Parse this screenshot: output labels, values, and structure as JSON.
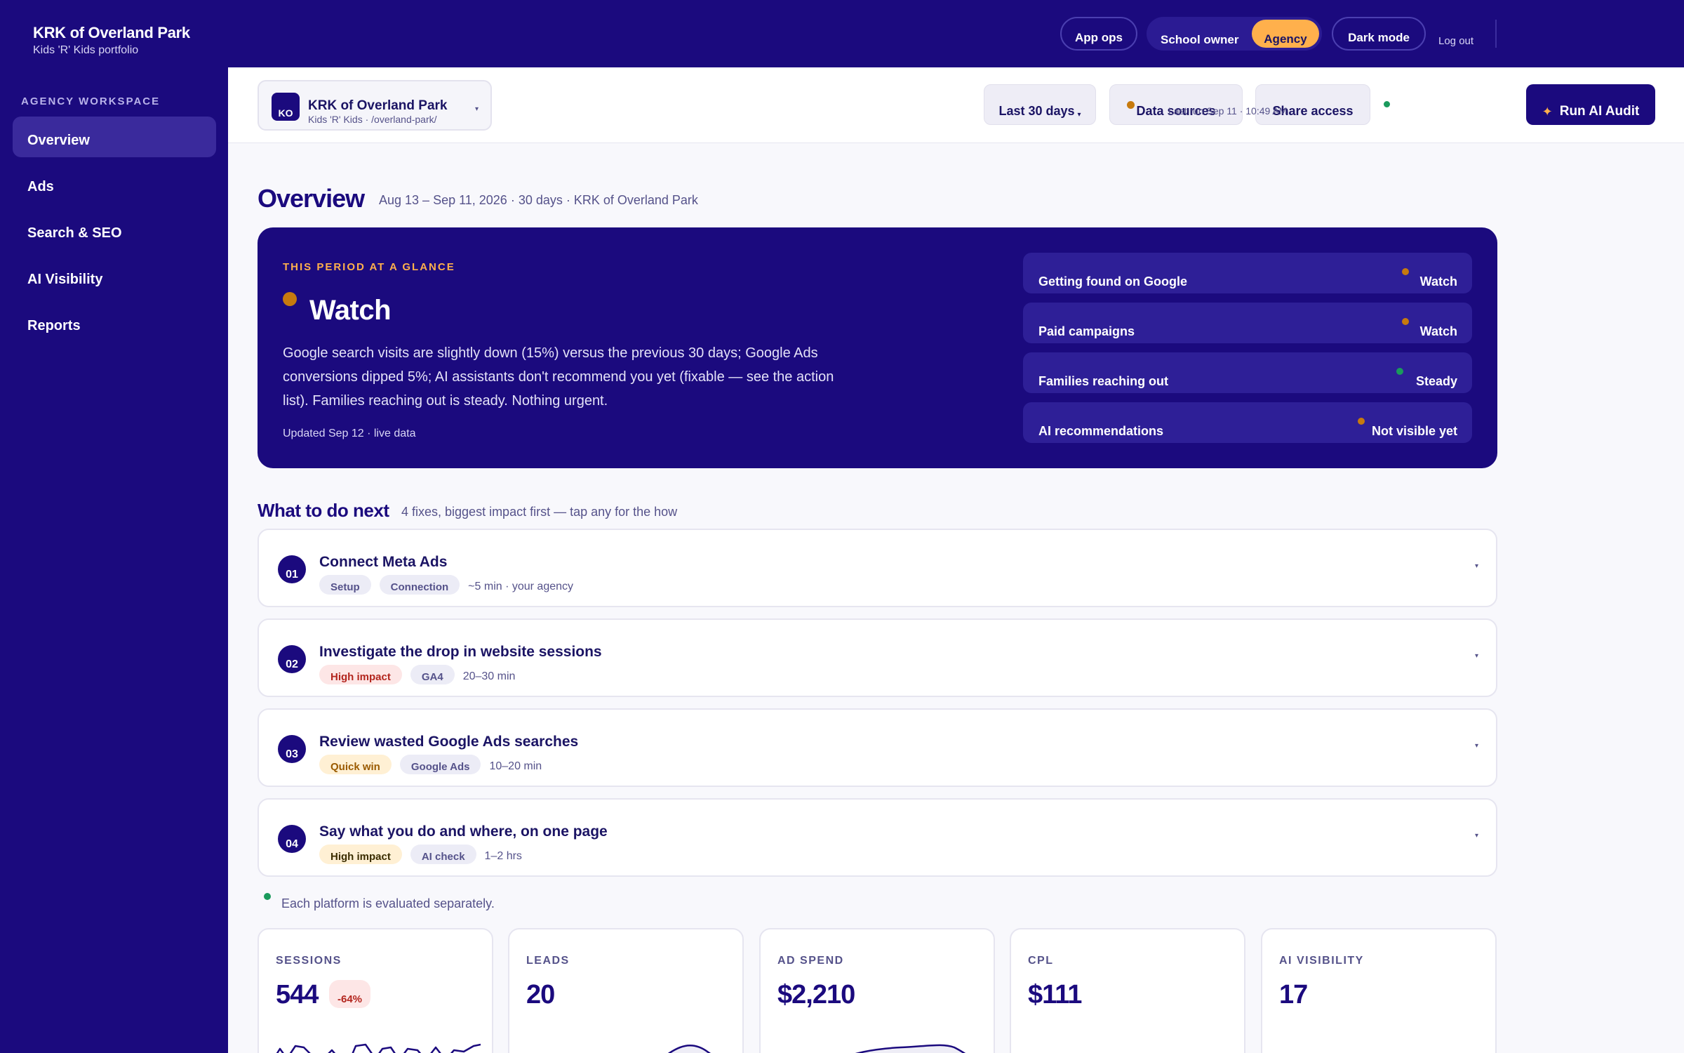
{
  "brand": {
    "title": "KRK of Overland Park",
    "subtitle": "Kids 'R' Kids portfolio"
  },
  "topnav": {
    "app_ops": "App ops",
    "school_owner": "School owner",
    "agency": "Agency",
    "dark_mode": "Dark mode",
    "logout": "Log out"
  },
  "sidebar": {
    "heading": "AGENCY WORKSPACE",
    "items": [
      {
        "label": "Overview"
      },
      {
        "label": "Ads"
      },
      {
        "label": "Search & SEO"
      },
      {
        "label": "AI Visibility"
      },
      {
        "label": "Reports"
      }
    ]
  },
  "site": {
    "initials": "KO",
    "name": "KRK of Overland Park",
    "path": "Kids 'R' Kids · /overland-park/"
  },
  "toolbar": {
    "range": "Last 30 days",
    "data_sources": "Data sources",
    "share": "Share access",
    "last_run": "Last run Sep 11 · 10:49 AM",
    "run_audit": "Run AI Audit"
  },
  "overview": {
    "title": "Overview",
    "meta": "Aug 13 – Sep 11, 2026 · 30 days · KRK of Overland Park"
  },
  "glance": {
    "kicker": "THIS PERIOD AT A GLANCE",
    "status": "Watch",
    "summary": "Google search visits are slightly down (15%) versus the previous 30 days; Google Ads conversions dipped 5%; AI assistants don't recommend you yet (fixable — see the action list). Families reaching out is steady. Nothing urgent.",
    "updated": "Updated Sep 12 · live data",
    "rows": [
      {
        "label": "Getting found on Google",
        "status": "Watch",
        "color": "#c77a0e"
      },
      {
        "label": "Paid campaigns",
        "status": "Watch",
        "color": "#c77a0e"
      },
      {
        "label": "Families reaching out",
        "status": "Steady",
        "color": "#1a9a5c"
      },
      {
        "label": "AI recommendations",
        "status": "Not visible yet",
        "color": "#c77a0e"
      }
    ]
  },
  "next": {
    "title": "What to do next",
    "meta": "4 fixes, biggest impact first — tap any for the how",
    "actions": [
      {
        "num": "01",
        "title": "Connect Meta Ads",
        "tags": [
          "Setup",
          "Connection"
        ],
        "time": "~5 min · your agency"
      },
      {
        "num": "02",
        "title": "Investigate the drop in website sessions",
        "tags": [
          "High impact",
          "GA4"
        ],
        "time": "20–30 min"
      },
      {
        "num": "03",
        "title": "Review wasted Google Ads searches",
        "tags": [
          "Quick win",
          "Google Ads"
        ],
        "time": "10–20 min"
      },
      {
        "num": "04",
        "title": "Say what you do and where, on one page",
        "tags": [
          "High impact",
          "AI check"
        ],
        "time": "1–2 hrs"
      }
    ]
  },
  "eval_note": "Each platform is evaluated separately.",
  "kpis": [
    {
      "label": "SESSIONS",
      "value": "544",
      "delta": "-64%"
    },
    {
      "label": "LEADS",
      "value": "20"
    },
    {
      "label": "AD SPEND",
      "value": "$2,210"
    },
    {
      "label": "CPL",
      "value": "$111"
    },
    {
      "label": "AI VISIBILITY",
      "value": "17"
    }
  ],
  "colors": {
    "brand": "#1b0a7e",
    "accent": "#ffb04c",
    "watch": "#c77a0e",
    "steady": "#1a9a5c"
  }
}
